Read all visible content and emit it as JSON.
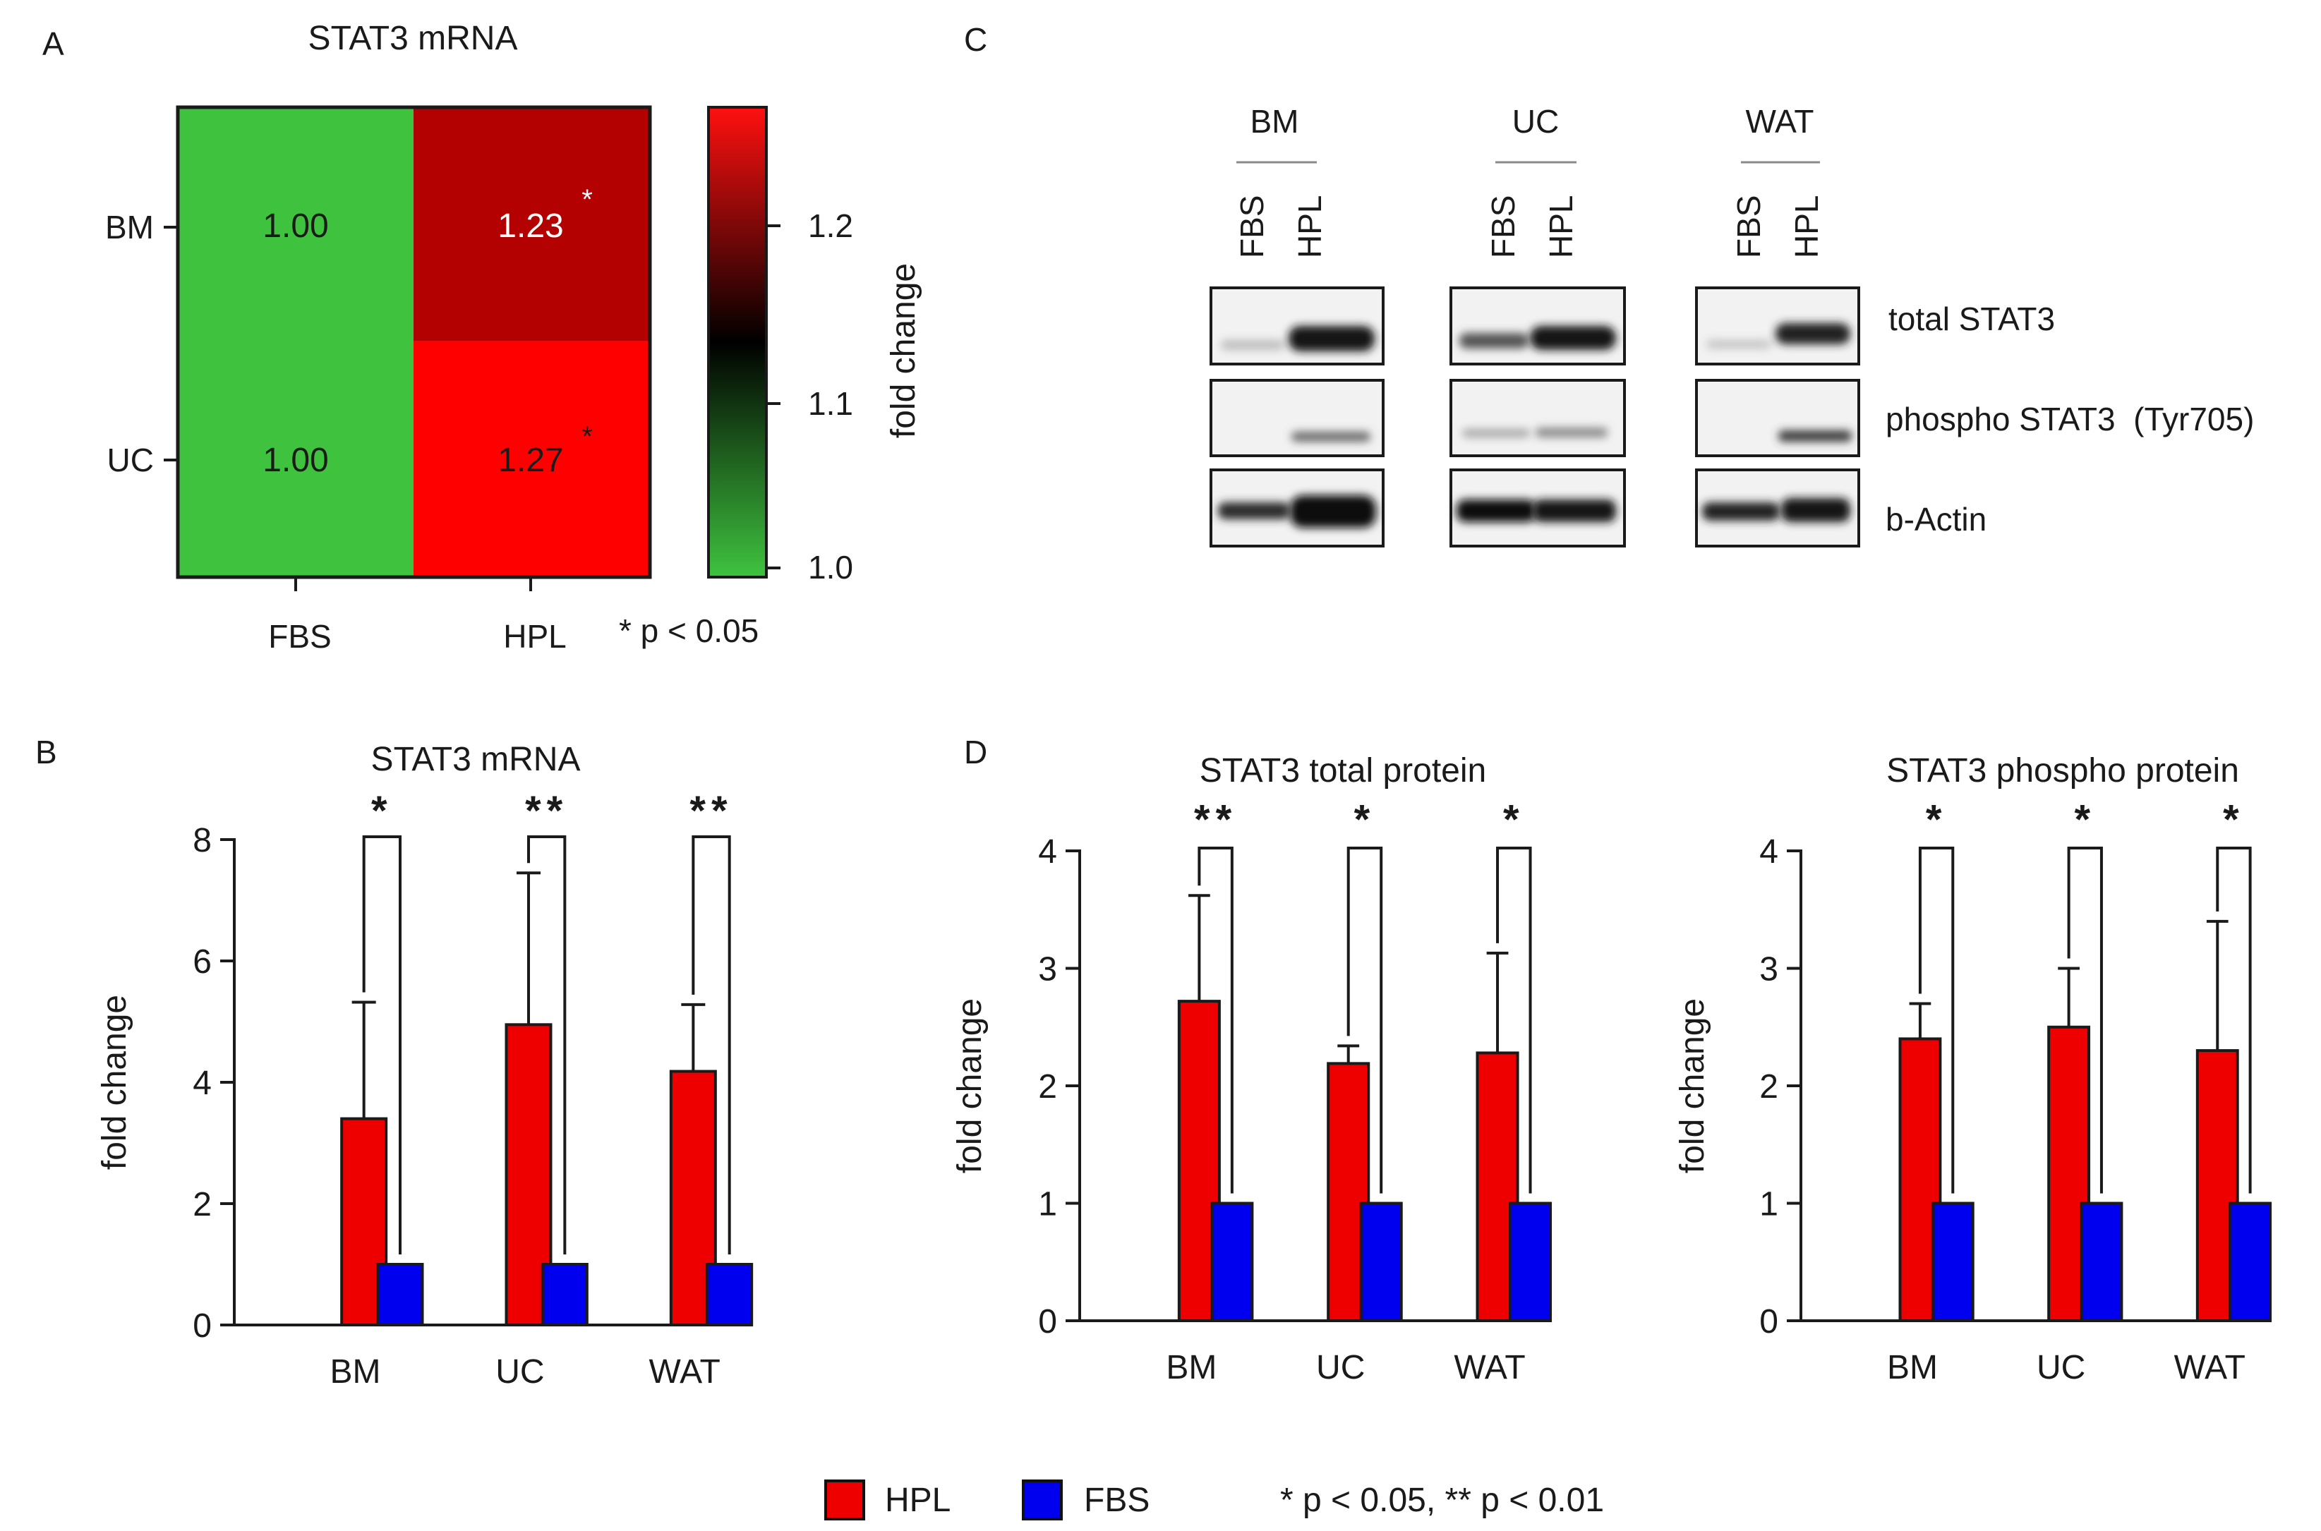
{
  "panel_letters": {
    "a": "A",
    "b": "B",
    "c": "C",
    "d": "D"
  },
  "heatmap": {
    "title": "STAT3 mRNA",
    "rows": [
      "BM",
      "UC"
    ],
    "cols": [
      "FBS",
      "HPL"
    ],
    "cells": [
      [
        "1.00",
        "1.23"
      ],
      [
        "1.00",
        "1.27"
      ]
    ],
    "asterisk": "*",
    "colorbar_label": "fold change",
    "colorbar_ticks": [
      "1.2",
      "1.1",
      "1.0"
    ],
    "pnote": "* p < 0.05"
  },
  "western_blot": {
    "groups": [
      "BM",
      "UC",
      "WAT"
    ],
    "lanes": [
      "FBS",
      "HPL"
    ],
    "bands": [
      "total STAT3",
      "phospho STAT3  (Tyr705)",
      "b-Actin"
    ]
  },
  "legend": {
    "hpl": "HPL",
    "fbs": "FBS",
    "pnote": "* p < 0.05, ** p < 0.01"
  },
  "colors": {
    "hpl": "#ee0000",
    "fbs": "#0000ee",
    "heat_green": "#3fc33f",
    "heat_darkred": "#b30000",
    "heat_red": "#ff0000"
  },
  "chart_data": [
    {
      "type": "heatmap",
      "title": "STAT3 mRNA",
      "rows": [
        "BM",
        "UC"
      ],
      "columns": [
        "FBS",
        "HPL"
      ],
      "values": [
        [
          1.0,
          1.23
        ],
        [
          1.0,
          1.27
        ]
      ],
      "significant": [
        [
          false,
          true
        ],
        [
          false,
          true
        ]
      ],
      "colorbar": {
        "label": "fold change",
        "range": [
          1.0,
          1.27
        ],
        "ticks": [
          1.0,
          1.1,
          1.2
        ]
      }
    },
    {
      "type": "bar",
      "title": "STAT3 mRNA",
      "ylabel": "fold change",
      "ylim": [
        0,
        8
      ],
      "yticks": [
        0,
        2,
        4,
        6,
        8
      ],
      "categories": [
        "BM",
        "UC",
        "WAT"
      ],
      "series": [
        {
          "name": "HPL",
          "values": [
            3.4,
            4.95,
            4.18
          ],
          "errors": [
            1.92,
            2.5,
            1.1
          ]
        },
        {
          "name": "FBS",
          "values": [
            1.0,
            1.0,
            1.0
          ],
          "errors": [
            0,
            0,
            0
          ]
        }
      ],
      "significance": [
        "*",
        "**",
        "**"
      ]
    },
    {
      "type": "bar",
      "title": "STAT3 total protein",
      "ylabel": "fold change",
      "ylim": [
        0,
        4
      ],
      "yticks": [
        0,
        1,
        2,
        3,
        4
      ],
      "categories": [
        "BM",
        "UC",
        "WAT"
      ],
      "series": [
        {
          "name": "HPL",
          "values": [
            2.72,
            2.19,
            2.28
          ],
          "errors": [
            0.9,
            0.15,
            0.85
          ]
        },
        {
          "name": "FBS",
          "values": [
            1.0,
            1.0,
            1.0
          ],
          "errors": [
            0,
            0,
            0
          ]
        }
      ],
      "significance": [
        "**",
        "*",
        "*"
      ]
    },
    {
      "type": "bar",
      "title": "STAT3 phospho protein",
      "ylabel": "fold change",
      "ylim": [
        0,
        4
      ],
      "yticks": [
        0,
        1,
        2,
        3,
        4
      ],
      "categories": [
        "BM",
        "UC",
        "WAT"
      ],
      "series": [
        {
          "name": "HPL",
          "values": [
            2.4,
            2.5,
            2.3
          ],
          "errors": [
            0.3,
            0.5,
            1.1
          ]
        },
        {
          "name": "FBS",
          "values": [
            1.0,
            1.0,
            1.0
          ],
          "errors": [
            0,
            0,
            0
          ]
        }
      ],
      "significance": [
        "*",
        "*",
        "*"
      ]
    }
  ]
}
